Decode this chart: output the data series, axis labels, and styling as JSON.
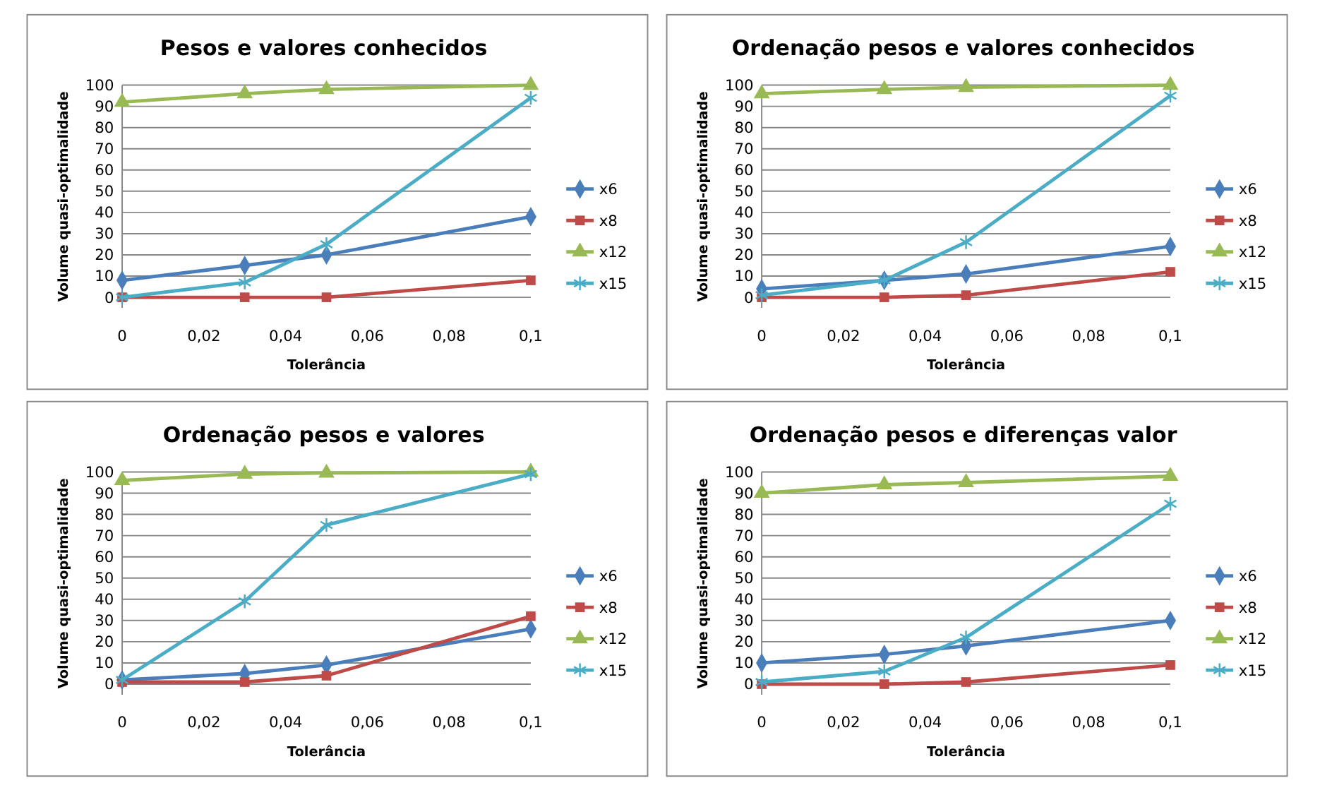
{
  "chart_data": [
    {
      "type": "line",
      "title": "Pesos e valores conhecidos",
      "xlabel": "Tolerância",
      "ylabel": "Volume quasi-optimalidade",
      "x": [
        0,
        0.03,
        0.05,
        0.1
      ],
      "xlim": [
        0,
        0.1
      ],
      "xticks": [
        {
          "value": 0,
          "label": "0"
        },
        {
          "value": 0.02,
          "label": "0,02"
        },
        {
          "value": 0.04,
          "label": "0,04"
        },
        {
          "value": 0.06,
          "label": "0,06"
        },
        {
          "value": 0.08,
          "label": "0,08"
        },
        {
          "value": 0.1,
          "label": "0,1"
        }
      ],
      "ylim": [
        -5,
        100
      ],
      "yticks": [
        0,
        10,
        20,
        30,
        40,
        50,
        60,
        70,
        80,
        90,
        100
      ],
      "grid": "y",
      "legend": "right",
      "series": [
        {
          "name": "x6",
          "color": "#4a7ebb",
          "marker": "diamond",
          "values": [
            8,
            15,
            20,
            38
          ]
        },
        {
          "name": "x8",
          "color": "#be4b48",
          "marker": "square",
          "values": [
            0,
            0,
            0,
            8
          ]
        },
        {
          "name": "x12",
          "color": "#98b954",
          "marker": "triangle",
          "values": [
            92,
            96,
            98,
            100
          ]
        },
        {
          "name": "x15",
          "color": "#4bacc6",
          "marker": "cross",
          "values": [
            0,
            7,
            25,
            94
          ]
        }
      ]
    },
    {
      "type": "line",
      "title": "Ordenação pesos e valores conhecidos",
      "xlabel": "Tolerância",
      "ylabel": "Volume quasi-optimalidade",
      "x": [
        0,
        0.03,
        0.05,
        0.1
      ],
      "xlim": [
        0,
        0.1
      ],
      "xticks": [
        {
          "value": 0,
          "label": "0"
        },
        {
          "value": 0.02,
          "label": "0,02"
        },
        {
          "value": 0.04,
          "label": "0,04"
        },
        {
          "value": 0.06,
          "label": "0,06"
        },
        {
          "value": 0.08,
          "label": "0,08"
        },
        {
          "value": 0.1,
          "label": "0,1"
        }
      ],
      "ylim": [
        -5,
        100
      ],
      "yticks": [
        0,
        10,
        20,
        30,
        40,
        50,
        60,
        70,
        80,
        90,
        100
      ],
      "grid": "y",
      "legend": "right",
      "series": [
        {
          "name": "x6",
          "color": "#4a7ebb",
          "marker": "diamond",
          "values": [
            4,
            8,
            11,
            24
          ]
        },
        {
          "name": "x8",
          "color": "#be4b48",
          "marker": "square",
          "values": [
            0,
            0,
            1,
            12
          ]
        },
        {
          "name": "x12",
          "color": "#98b954",
          "marker": "triangle",
          "values": [
            96,
            98,
            99,
            100
          ]
        },
        {
          "name": "x15",
          "color": "#4bacc6",
          "marker": "cross",
          "values": [
            1,
            8,
            26,
            95
          ]
        }
      ]
    },
    {
      "type": "line",
      "title": "Ordenação pesos e valores",
      "xlabel": "Tolerância",
      "ylabel": "Volume quasi-optimalidade",
      "x": [
        0,
        0.03,
        0.05,
        0.1
      ],
      "xlim": [
        0,
        0.1
      ],
      "xticks": [
        {
          "value": 0,
          "label": "0"
        },
        {
          "value": 0.02,
          "label": "0,02"
        },
        {
          "value": 0.04,
          "label": "0,04"
        },
        {
          "value": 0.06,
          "label": "0,06"
        },
        {
          "value": 0.08,
          "label": "0,08"
        },
        {
          "value": 0.1,
          "label": "0,1"
        }
      ],
      "ylim": [
        -5,
        100
      ],
      "yticks": [
        0,
        10,
        20,
        30,
        40,
        50,
        60,
        70,
        80,
        90,
        100
      ],
      "grid": "y",
      "legend": "right",
      "series": [
        {
          "name": "x6",
          "color": "#4a7ebb",
          "marker": "diamond",
          "values": [
            2,
            5,
            9,
            26
          ]
        },
        {
          "name": "x8",
          "color": "#be4b48",
          "marker": "square",
          "values": [
            1,
            1,
            4,
            32
          ]
        },
        {
          "name": "x12",
          "color": "#98b954",
          "marker": "triangle",
          "values": [
            96,
            99,
            99.5,
            100
          ]
        },
        {
          "name": "x15",
          "color": "#4bacc6",
          "marker": "cross",
          "values": [
            2,
            39,
            75,
            99
          ]
        }
      ]
    },
    {
      "type": "line",
      "title": "Ordenação pesos e diferenças valor",
      "xlabel": "Tolerância",
      "ylabel": "Volume quasi-optimalidade",
      "x": [
        0,
        0.03,
        0.05,
        0.1
      ],
      "xlim": [
        0,
        0.1
      ],
      "xticks": [
        {
          "value": 0,
          "label": "0"
        },
        {
          "value": 0.02,
          "label": "0,02"
        },
        {
          "value": 0.04,
          "label": "0,04"
        },
        {
          "value": 0.06,
          "label": "0,06"
        },
        {
          "value": 0.08,
          "label": "0,08"
        },
        {
          "value": 0.1,
          "label": "0,1"
        }
      ],
      "ylim": [
        -5,
        100
      ],
      "yticks": [
        0,
        10,
        20,
        30,
        40,
        50,
        60,
        70,
        80,
        90,
        100
      ],
      "grid": "y",
      "legend": "right",
      "series": [
        {
          "name": "x6",
          "color": "#4a7ebb",
          "marker": "diamond",
          "values": [
            10,
            14,
            18,
            30
          ]
        },
        {
          "name": "x8",
          "color": "#be4b48",
          "marker": "square",
          "values": [
            0,
            0,
            1,
            9
          ]
        },
        {
          "name": "x12",
          "color": "#98b954",
          "marker": "triangle",
          "values": [
            90,
            94,
            95,
            98
          ]
        },
        {
          "name": "x15",
          "color": "#4bacc6",
          "marker": "cross",
          "values": [
            1,
            6,
            22,
            85
          ]
        }
      ]
    }
  ]
}
